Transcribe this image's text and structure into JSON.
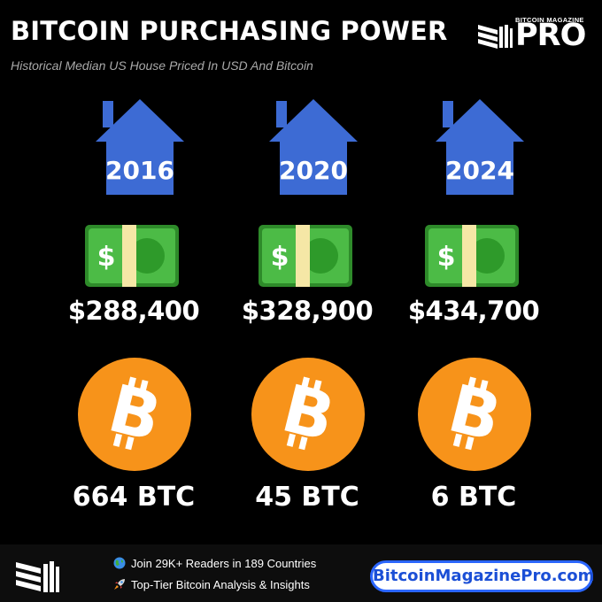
{
  "header": {
    "title": "BITCOIN PURCHASING POWER",
    "subtitle": "Historical Median US House Priced In USD And Bitcoin"
  },
  "brand": {
    "small": "BITCOIN MAGAZINE",
    "big": "PRO"
  },
  "columns": [
    {
      "year": "2016",
      "price": "$288,400",
      "btc": "664 BTC"
    },
    {
      "year": "2020",
      "price": "$328,900",
      "btc": "45 BTC"
    },
    {
      "year": "2024",
      "price": "$434,700",
      "btc": "6 BTC"
    }
  ],
  "footer": {
    "line1": "Join 29K+ Readers in 189 Countries",
    "line2": "Top-Tier Bitcoin Analysis & Insights",
    "site": "BitcoinMagazinePro.com"
  },
  "colors": {
    "house": "#3d6bd4",
    "bill": "#3fae3b",
    "coin": "#f7931a",
    "accent": "#2b66ff"
  },
  "icons": {
    "globe": "globe-icon",
    "rocket": "rocket-icon",
    "house": "house-icon",
    "money": "money-bill-icon",
    "coin": "bitcoin-coin-icon"
  }
}
